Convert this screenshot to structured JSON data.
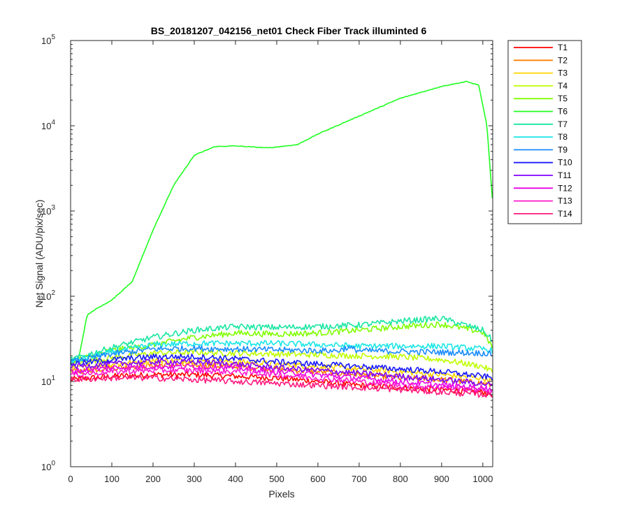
{
  "chart_data": {
    "type": "line",
    "title": "BS_20181207_042156_net01   Check Fiber     Track illuminted 6",
    "xlabel": "Pixels",
    "ylabel": "Net Signal (ADU/pix/sec)",
    "xlim": [
      0,
      1024
    ],
    "ylim": [
      1,
      100000
    ],
    "yscale": "log",
    "xticks": [
      "0",
      "100",
      "200",
      "300",
      "400",
      "500",
      "600",
      "700",
      "800",
      "900",
      "1000"
    ],
    "yticks": [
      {
        "base": "10",
        "exp": "0"
      },
      {
        "base": "10",
        "exp": "1"
      },
      {
        "base": "10",
        "exp": "2"
      },
      {
        "base": "10",
        "exp": "3"
      },
      {
        "base": "10",
        "exp": "4"
      },
      {
        "base": "10",
        "exp": "5"
      }
    ],
    "grid": false,
    "legend_position": "outside-top-right",
    "series": [
      {
        "name": "T1",
        "color": "#ff0000",
        "x": [
          0,
          100,
          200,
          300,
          400,
          500,
          600,
          700,
          800,
          900,
          1000,
          1024
        ],
        "y": [
          10.5,
          11.5,
          12,
          12,
          11.5,
          11,
          10,
          9,
          8.5,
          8,
          7.5,
          7
        ]
      },
      {
        "name": "T2",
        "color": "#ff7f00",
        "x": [
          0,
          100,
          200,
          300,
          400,
          500,
          600,
          700,
          800,
          900,
          1000,
          1024
        ],
        "y": [
          13,
          14.5,
          15.5,
          15.5,
          15,
          14,
          13,
          12,
          11,
          10.5,
          9.5,
          9
        ]
      },
      {
        "name": "T3",
        "color": "#ffd400",
        "x": [
          0,
          100,
          200,
          300,
          400,
          500,
          600,
          700,
          800,
          900,
          1000,
          1024
        ],
        "y": [
          14,
          16,
          17.5,
          17.5,
          17,
          16,
          15,
          14,
          13,
          12,
          11,
          10
        ]
      },
      {
        "name": "T4",
        "color": "#bfff00",
        "x": [
          0,
          100,
          200,
          300,
          400,
          500,
          600,
          700,
          800,
          900,
          1000,
          1024
        ],
        "y": [
          16,
          19,
          21.5,
          22,
          21.5,
          21,
          20.5,
          20,
          19.5,
          18,
          15,
          13
        ]
      },
      {
        "name": "T5",
        "color": "#7fff00",
        "x": [
          0,
          100,
          200,
          300,
          400,
          500,
          600,
          700,
          800,
          900,
          1000,
          1024
        ],
        "y": [
          17,
          23,
          27,
          33,
          37,
          36,
          37,
          40,
          44,
          47,
          38,
          25
        ]
      },
      {
        "name": "T6",
        "color": "#1fff1f",
        "x": [
          0,
          20,
          40,
          60,
          100,
          150,
          200,
          250,
          300,
          350,
          400,
          450,
          480,
          550,
          600,
          700,
          800,
          900,
          960,
          990,
          1010,
          1024
        ],
        "y": [
          18,
          19,
          60,
          70,
          90,
          150,
          600,
          2000,
          4500,
          5700,
          5800,
          5600,
          5500,
          6000,
          8000,
          13000,
          21000,
          29000,
          33000,
          30000,
          10000,
          1200
        ]
      },
      {
        "name": "T7",
        "color": "#19e6a3",
        "x": [
          0,
          100,
          200,
          300,
          400,
          500,
          600,
          700,
          800,
          900,
          1000,
          1024
        ],
        "y": [
          18,
          25,
          33,
          40,
          44,
          43,
          44,
          46,
          51,
          55,
          40,
          30
        ]
      },
      {
        "name": "T8",
        "color": "#1ae6e6",
        "x": [
          0,
          100,
          200,
          300,
          400,
          500,
          600,
          700,
          800,
          900,
          1000,
          1024
        ],
        "y": [
          17,
          22,
          27,
          28,
          28,
          28,
          27,
          26,
          26,
          26,
          24,
          23
        ]
      },
      {
        "name": "T9",
        "color": "#1a8cff",
        "x": [
          0,
          100,
          200,
          300,
          400,
          500,
          600,
          650,
          670,
          700,
          800,
          900,
          1000,
          1024
        ],
        "y": [
          17,
          21,
          24,
          24.5,
          24,
          23.5,
          23,
          23,
          25,
          23,
          22.5,
          22,
          21.5,
          21
        ]
      },
      {
        "name": "T10",
        "color": "#1a1aff",
        "x": [
          0,
          100,
          200,
          300,
          400,
          500,
          600,
          700,
          800,
          900,
          1000,
          1024
        ],
        "y": [
          16,
          18,
          19.5,
          19.5,
          18.5,
          17,
          16,
          15,
          14,
          13,
          11.5,
          11
        ]
      },
      {
        "name": "T11",
        "color": "#7f00ff",
        "x": [
          0,
          100,
          200,
          300,
          400,
          500,
          600,
          700,
          800,
          900,
          1000,
          1024
        ],
        "y": [
          15,
          16,
          17,
          17,
          16,
          14.5,
          13.5,
          12.5,
          11.5,
          10.5,
          9.5,
          9
        ]
      },
      {
        "name": "T12",
        "color": "#e600e6",
        "x": [
          0,
          100,
          200,
          300,
          400,
          500,
          600,
          700,
          800,
          900,
          1000,
          1024
        ],
        "y": [
          13,
          14.5,
          15,
          15,
          14.5,
          13,
          12,
          11,
          10,
          9,
          8.5,
          8
        ]
      },
      {
        "name": "T13",
        "color": "#ff1acc",
        "x": [
          0,
          100,
          200,
          300,
          400,
          500,
          600,
          700,
          800,
          900,
          1000,
          1024
        ],
        "y": [
          12,
          13,
          13.5,
          13.5,
          13,
          12,
          11,
          10,
          9,
          8.5,
          8,
          7.5
        ]
      },
      {
        "name": "T14",
        "color": "#ff1a80",
        "x": [
          0,
          100,
          200,
          300,
          400,
          500,
          600,
          700,
          800,
          900,
          1000,
          1024
        ],
        "y": [
          10.5,
          11,
          11,
          10.5,
          10,
          9.5,
          9,
          8.5,
          8,
          7.5,
          7,
          7
        ]
      }
    ]
  }
}
